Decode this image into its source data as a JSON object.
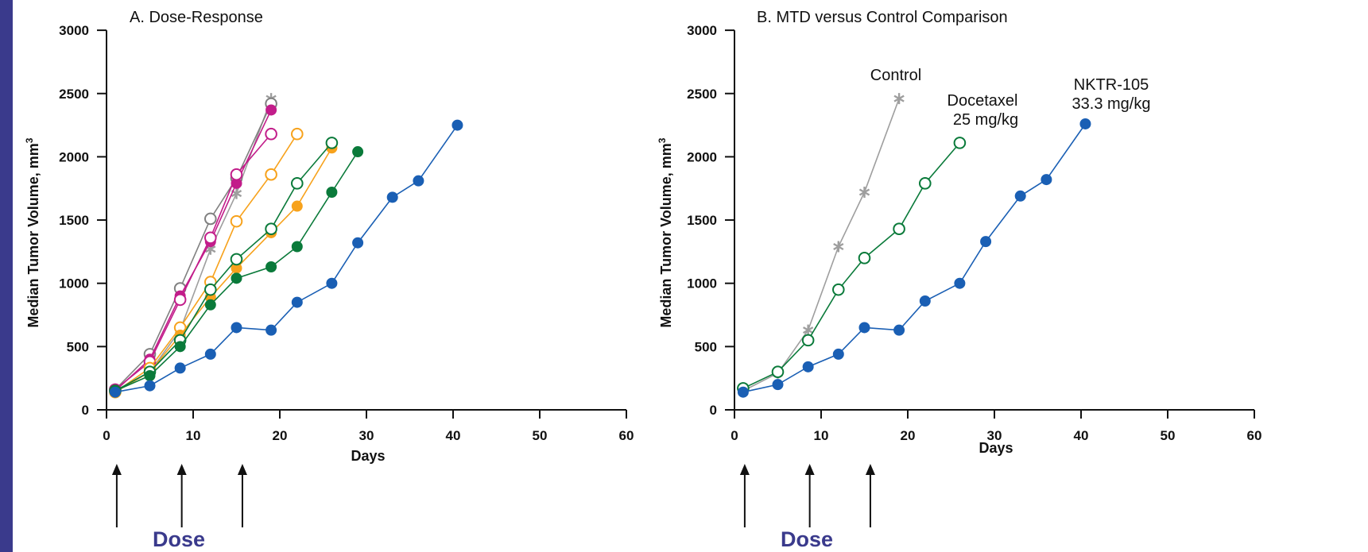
{
  "chart_data": [
    {
      "type": "line",
      "title": "A. Dose-Response",
      "xlabel": "Days",
      "ylabel": "Median Tumor Volume, mm",
      "ylabel_superscript": "3",
      "xlim": [
        0,
        60
      ],
      "ylim": [
        0,
        3000
      ],
      "xticks": [
        0,
        10,
        20,
        30,
        40,
        50,
        60
      ],
      "yticks": [
        0,
        500,
        1000,
        1500,
        2000,
        2500,
        3000
      ],
      "grid": false,
      "dose_label": "Dose",
      "dose_days": [
        1,
        8.5,
        15.5
      ],
      "series": [
        {
          "marker": "star",
          "color": "#9e9e9e",
          "x": [
            1,
            5,
            8.5,
            12,
            15,
            19
          ],
          "y": [
            150,
            300,
            630,
            1270,
            1710,
            2460
          ]
        },
        {
          "marker": "open-circle",
          "color": "#808080",
          "x": [
            1,
            5,
            8.5,
            12,
            15,
            19
          ],
          "y": [
            160,
            440,
            960,
            1510,
            1830,
            2420
          ]
        },
        {
          "marker": "filled-circle",
          "color": "#c21d8a",
          "x": [
            1,
            5,
            8.5,
            12,
            15,
            19
          ],
          "y": [
            150,
            400,
            900,
            1330,
            1790,
            2370
          ]
        },
        {
          "marker": "open-circle",
          "color": "#c21d8a",
          "x": [
            1,
            5,
            8.5,
            12,
            15,
            19
          ],
          "y": [
            160,
            380,
            870,
            1360,
            1860,
            2180
          ]
        },
        {
          "marker": "open-circle",
          "color": "#f7a21c",
          "x": [
            1,
            5,
            8.5,
            12,
            15,
            19,
            22
          ],
          "y": [
            140,
            330,
            650,
            1010,
            1490,
            1860,
            2180
          ]
        },
        {
          "marker": "filled-circle",
          "color": "#f7a21c",
          "x": [
            1,
            5,
            8.5,
            12,
            15,
            19,
            22,
            26
          ],
          "y": [
            140,
            300,
            590,
            890,
            1120,
            1400,
            1610,
            2070
          ]
        },
        {
          "marker": "open-circle",
          "color": "#0a7a3a",
          "x": [
            1,
            5,
            8.5,
            12,
            15,
            19,
            22,
            26
          ],
          "y": [
            150,
            300,
            550,
            950,
            1190,
            1430,
            1790,
            2110
          ]
        },
        {
          "marker": "filled-circle",
          "color": "#0a7a3a",
          "x": [
            1,
            5,
            8.5,
            12,
            15,
            19,
            22,
            26,
            29
          ],
          "y": [
            150,
            270,
            500,
            830,
            1040,
            1130,
            1290,
            1720,
            2040
          ]
        },
        {
          "marker": "filled-circle",
          "color": "#1a5fb4",
          "x": [
            1,
            5,
            8.5,
            12,
            15,
            19,
            22,
            26,
            29,
            33,
            36,
            40.5
          ],
          "y": [
            140,
            190,
            330,
            440,
            650,
            630,
            850,
            1000,
            1320,
            1680,
            1810,
            2250
          ]
        }
      ]
    },
    {
      "type": "line",
      "title": "B. MTD versus Control Comparison",
      "xlabel": "Days",
      "ylabel": "Median Tumor Volume, mm",
      "ylabel_superscript": "3",
      "xlim": [
        0,
        60
      ],
      "ylim": [
        0,
        3000
      ],
      "xticks": [
        0,
        10,
        20,
        30,
        40,
        50,
        60
      ],
      "yticks": [
        0,
        500,
        1000,
        1500,
        2000,
        2500,
        3000
      ],
      "grid": false,
      "dose_label": "Dose",
      "dose_days": [
        1,
        8.5,
        15.5
      ],
      "annotations": [
        {
          "lines": [
            "Control"
          ]
        },
        {
          "lines": [
            "Docetaxel",
            "25 mg/kg"
          ]
        },
        {
          "lines": [
            "NKTR-105",
            "33.3 mg/kg"
          ]
        }
      ],
      "series": [
        {
          "marker": "star",
          "color": "#9e9e9e",
          "x": [
            1,
            5,
            8.5,
            12,
            15,
            19
          ],
          "y": [
            150,
            290,
            630,
            1290,
            1720,
            2460
          ]
        },
        {
          "marker": "open-circle",
          "color": "#0a7a3a",
          "x": [
            1,
            5,
            8.5,
            12,
            15,
            19,
            22,
            26
          ],
          "y": [
            170,
            300,
            550,
            950,
            1200,
            1430,
            1790,
            2110
          ]
        },
        {
          "marker": "filled-circle",
          "color": "#1a5fb4",
          "x": [
            1,
            5,
            8.5,
            12,
            15,
            19,
            22,
            26,
            29,
            33,
            36,
            40.5
          ],
          "y": [
            140,
            200,
            340,
            440,
            650,
            630,
            860,
            1000,
            1330,
            1690,
            1820,
            2260
          ]
        }
      ]
    }
  ]
}
